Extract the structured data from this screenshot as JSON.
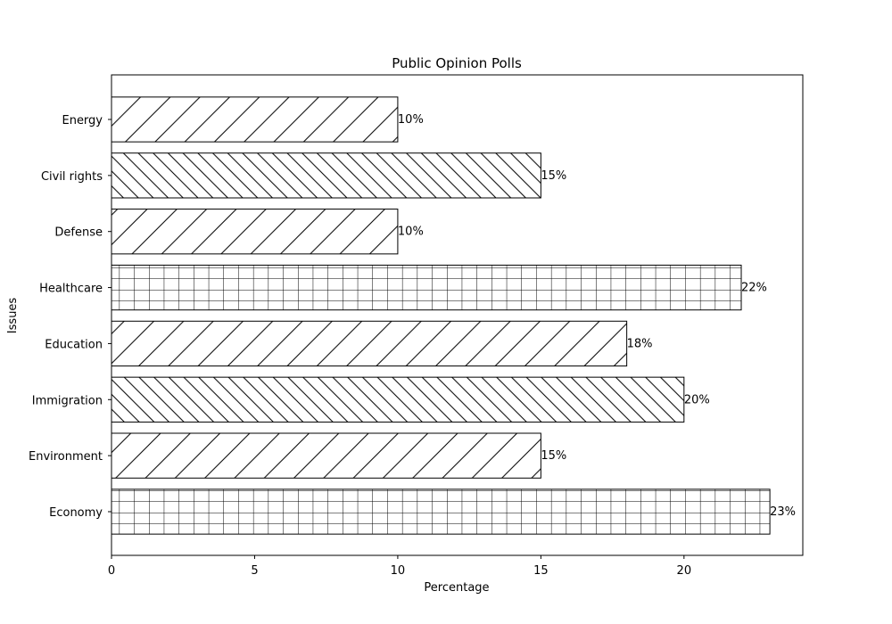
{
  "chart_data": {
    "type": "bar",
    "orientation": "horizontal",
    "title": "Public Opinion Polls",
    "xlabel": "Percentage",
    "ylabel": "Issues",
    "categories": [
      "Economy",
      "Environment",
      "Immigration",
      "Education",
      "Healthcare",
      "Defense",
      "Civil rights",
      "Energy"
    ],
    "values": [
      23,
      15,
      20,
      18,
      22,
      10,
      15,
      10
    ],
    "data_labels": [
      "23%",
      "15%",
      "20%",
      "18%",
      "22%",
      "10%",
      "15%",
      "10%"
    ],
    "hatches": [
      "grid",
      "forward-diagonal",
      "back-diagonal",
      "forward-diagonal-wide",
      "grid",
      "forward-diagonal",
      "back-diagonal",
      "forward-diagonal-wide"
    ],
    "xlim": [
      0,
      24.15
    ],
    "xticks": [
      0,
      5,
      10,
      15,
      20
    ],
    "grid": false,
    "legend": "none",
    "colors": {
      "bar_fill": "#ffffff",
      "bar_edge": "#000000",
      "hatch": "#000000"
    }
  }
}
